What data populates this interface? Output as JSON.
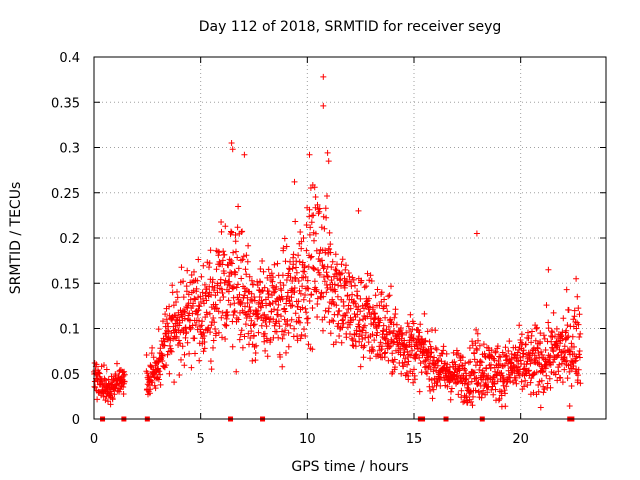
{
  "chart_data": {
    "type": "scatter",
    "title": "Day 112 of 2018, SRMTID for receiver seyg",
    "xlabel": "GPS time / hours",
    "ylabel": "SRMTID / TECUs",
    "xlim": [
      0,
      24
    ],
    "ylim": [
      0,
      0.4
    ],
    "grid": true,
    "legend": "none",
    "marker": "plus",
    "color": "#ff0000",
    "x_ticks": [
      0,
      5,
      10,
      15,
      20
    ],
    "x_tick_labels": [
      "0",
      "5",
      "10",
      "15",
      "20"
    ],
    "y_ticks": [
      0,
      0.05,
      0.1,
      0.15,
      0.2,
      0.25,
      0.3,
      0.35,
      0.4
    ],
    "y_tick_labels": [
      "0",
      "0.05",
      "0.1",
      "0.15",
      "0.2",
      "0.25",
      "0.3",
      "0.35",
      "0.4"
    ],
    "series": [
      {
        "name": "SRMTID",
        "trend_time_hours": [
          0,
          0.3,
          0.8,
          1.3,
          1.4,
          2.5,
          3.0,
          3.5,
          4.0,
          4.5,
          5.0,
          5.5,
          6.0,
          6.5,
          7.0,
          7.5,
          8.0,
          8.5,
          9.0,
          9.5,
          10.0,
          10.5,
          11.0,
          11.5,
          12.0,
          12.5,
          13.0,
          13.5,
          14.0,
          14.5,
          15.0,
          15.5,
          16.0,
          16.5,
          17.0,
          17.5,
          18.0,
          18.5,
          19.0,
          19.5,
          20.0,
          20.5,
          21.0,
          21.5,
          22.0,
          22.5,
          22.8
        ],
        "trend_srmtid": [
          0.05,
          0.04,
          0.035,
          0.04,
          0.045,
          0.04,
          0.06,
          0.09,
          0.11,
          0.12,
          0.12,
          0.13,
          0.14,
          0.16,
          0.14,
          0.12,
          0.12,
          0.12,
          0.13,
          0.14,
          0.17,
          0.18,
          0.16,
          0.14,
          0.12,
          0.11,
          0.11,
          0.1,
          0.09,
          0.08,
          0.08,
          0.07,
          0.06,
          0.05,
          0.05,
          0.045,
          0.06,
          0.055,
          0.05,
          0.055,
          0.06,
          0.06,
          0.065,
          0.07,
          0.075,
          0.08,
          0.09
        ],
        "spread": [
          0.02,
          0.015,
          0.015,
          0.015,
          0.015,
          0.02,
          0.025,
          0.04,
          0.05,
          0.05,
          0.05,
          0.05,
          0.06,
          0.07,
          0.06,
          0.05,
          0.05,
          0.05,
          0.06,
          0.07,
          0.07,
          0.08,
          0.07,
          0.06,
          0.05,
          0.05,
          0.05,
          0.045,
          0.04,
          0.035,
          0.035,
          0.03,
          0.03,
          0.025,
          0.025,
          0.025,
          0.04,
          0.03,
          0.03,
          0.03,
          0.035,
          0.035,
          0.04,
          0.04,
          0.045,
          0.045,
          0.05
        ],
        "data_gaps_hours": [
          [
            1.45,
            2.45
          ]
        ],
        "samples_per_hour": 90,
        "peaks": [
          {
            "x": 10.75,
            "y": 0.378
          },
          {
            "x": 10.75,
            "y": 0.346
          },
          {
            "x": 6.45,
            "y": 0.305
          },
          {
            "x": 6.5,
            "y": 0.298
          },
          {
            "x": 7.05,
            "y": 0.292
          },
          {
            "x": 10.95,
            "y": 0.294
          },
          {
            "x": 10.1,
            "y": 0.292
          },
          {
            "x": 9.4,
            "y": 0.262
          },
          {
            "x": 11.0,
            "y": 0.285
          },
          {
            "x": 12.4,
            "y": 0.23
          },
          {
            "x": 17.95,
            "y": 0.205
          },
          {
            "x": 21.3,
            "y": 0.165
          },
          {
            "x": 22.6,
            "y": 0.155
          }
        ]
      },
      {
        "name": "zero-level markers",
        "marker": "square",
        "x": [
          0.4,
          1.4,
          2.5,
          6.4,
          7.9,
          15.3,
          15.4,
          16.5,
          18.2,
          22.3,
          22.4
        ],
        "y": [
          0,
          0,
          0,
          0,
          0,
          0,
          0,
          0,
          0,
          0,
          0
        ]
      }
    ]
  }
}
